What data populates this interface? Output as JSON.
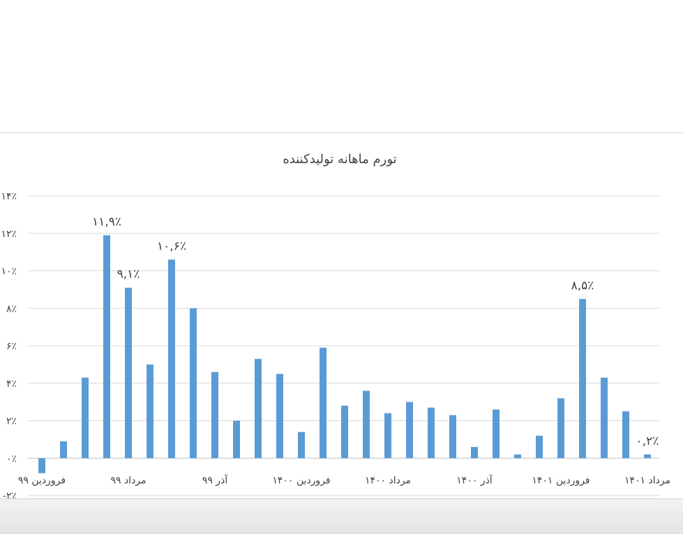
{
  "chart_data": {
    "type": "bar",
    "title": "تورم ماهانه تولیدکننده",
    "xlabel": "",
    "ylabel": "",
    "ylim": [
      -2,
      14
    ],
    "y_ticks": [
      -2,
      0,
      2,
      4,
      6,
      8,
      10,
      12,
      14
    ],
    "y_tick_labels": [
      "-۲٪",
      "۰٪",
      "۲٪",
      "۴٪",
      "۶٪",
      "۸٪",
      "۱۰٪",
      "۱۲٪",
      "۱۴٪"
    ],
    "grid": true,
    "bar_color": "#5b9bd5",
    "values": [
      -0.8,
      0.9,
      4.3,
      11.9,
      9.1,
      5.0,
      10.6,
      8.0,
      4.6,
      2.0,
      5.3,
      4.5,
      1.4,
      5.9,
      2.8,
      3.6,
      2.4,
      3.0,
      2.7,
      2.3,
      0.6,
      2.6,
      0.2,
      1.2,
      3.2,
      8.5,
      4.3,
      2.5,
      0.2
    ],
    "category_labels": [
      {
        "index": 0,
        "text": "فروردین ۹۹"
      },
      {
        "index": 4,
        "text": "مرداد ۹۹"
      },
      {
        "index": 8,
        "text": "آذر ۹۹"
      },
      {
        "index": 12,
        "text": "فروردین ۱۴۰۰"
      },
      {
        "index": 16,
        "text": "مرداد ۱۴۰۰"
      },
      {
        "index": 20,
        "text": "آذر ۱۴۰۰"
      },
      {
        "index": 24,
        "text": "فروردین ۱۴۰۱"
      },
      {
        "index": 28,
        "text": "مرداد ۱۴۰۱"
      }
    ],
    "data_labels": [
      {
        "index": 3,
        "text": "۱۱,۹٪"
      },
      {
        "index": 4,
        "text": "۹,۱٪"
      },
      {
        "index": 6,
        "text": "۱۰,۶٪"
      },
      {
        "index": 25,
        "text": "۸,۵٪"
      },
      {
        "index": 28,
        "text": "۰,۲٪"
      }
    ]
  }
}
